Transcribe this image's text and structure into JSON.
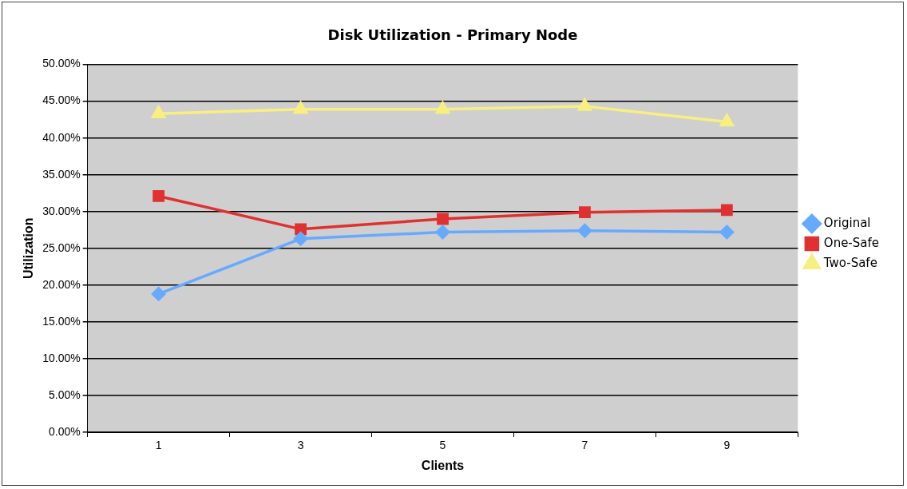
{
  "chart_data": {
    "type": "line",
    "title": "Disk Utilization - Primary Node",
    "xlabel": "Clients",
    "ylabel": "Utilization",
    "categories": [
      "1",
      "3",
      "5",
      "7",
      "9"
    ],
    "series": [
      {
        "name": "Original",
        "color": "#66aaff",
        "values": [
          18.8,
          26.3,
          27.2,
          27.4,
          27.2
        ],
        "marker": "diamond"
      },
      {
        "name": "One-Safe",
        "color": "#e03030",
        "values": [
          32.1,
          27.6,
          29.0,
          29.9,
          30.2
        ],
        "marker": "square"
      },
      {
        "name": "Two-Safe",
        "color": "#f8ef80",
        "values": [
          43.3,
          43.9,
          43.9,
          44.3,
          42.2
        ],
        "marker": "triangle"
      }
    ],
    "ylim": [
      0,
      50
    ],
    "yticks": [
      {
        "value": 0,
        "label": "0.00%"
      },
      {
        "value": 5,
        "label": "5.00%"
      },
      {
        "value": 10,
        "label": "10.00%"
      },
      {
        "value": 15,
        "label": "15.00%"
      },
      {
        "value": 20,
        "label": "20.00%"
      },
      {
        "value": 25,
        "label": "25.00%"
      },
      {
        "value": 30,
        "label": "30.00%"
      },
      {
        "value": 35,
        "label": "35.00%"
      },
      {
        "value": 40,
        "label": "40.00%"
      },
      {
        "value": 45,
        "label": "45.00%"
      },
      {
        "value": 50,
        "label": "50.00%"
      }
    ],
    "grid": "y",
    "legend": "right",
    "line_style": "solid"
  }
}
